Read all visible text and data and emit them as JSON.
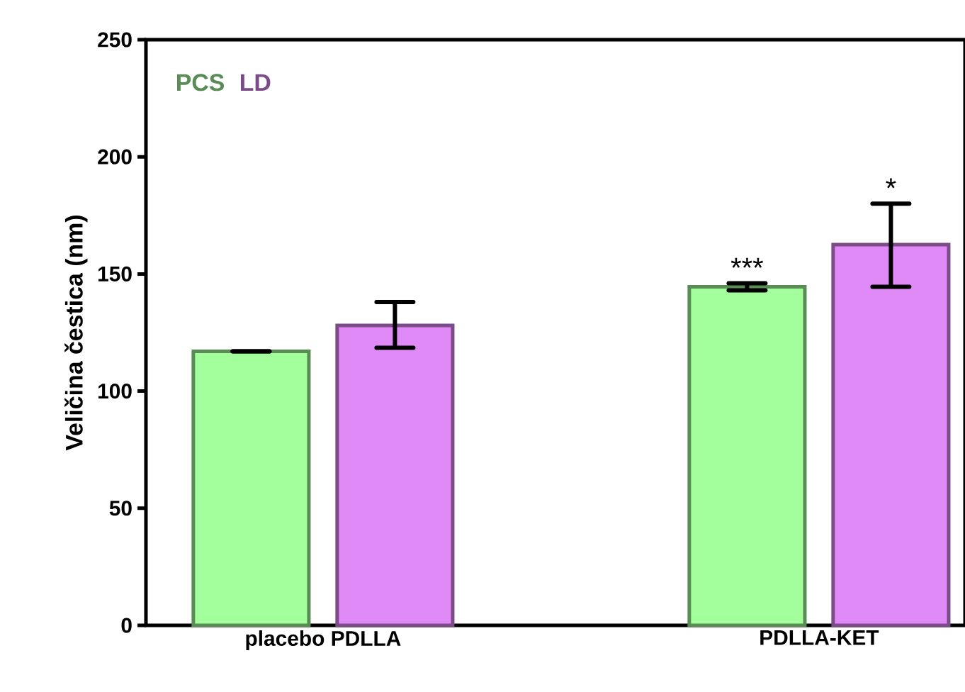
{
  "chart_data": {
    "type": "bar",
    "ylabel": "Veličina čestica (nm)",
    "categories": [
      "placebo PDLLA",
      "PDLLA-KET"
    ],
    "series": [
      {
        "name": "PCS",
        "color": "#a3ff9c",
        "values": [
          117,
          144.5
        ],
        "errors": [
          [
            117,
            117
          ],
          [
            143,
            146
          ]
        ]
      },
      {
        "name": "LD",
        "color": "#df8af7",
        "values": [
          128,
          162.5
        ],
        "errors": [
          [
            118.5,
            138
          ],
          [
            144.5,
            180
          ]
        ]
      }
    ],
    "ylim": [
      0,
      250
    ],
    "yticks": [
      0,
      50,
      100,
      150,
      200,
      250
    ],
    "legend": "top left",
    "grid": false,
    "annotations": [
      "***",
      "*"
    ]
  }
}
